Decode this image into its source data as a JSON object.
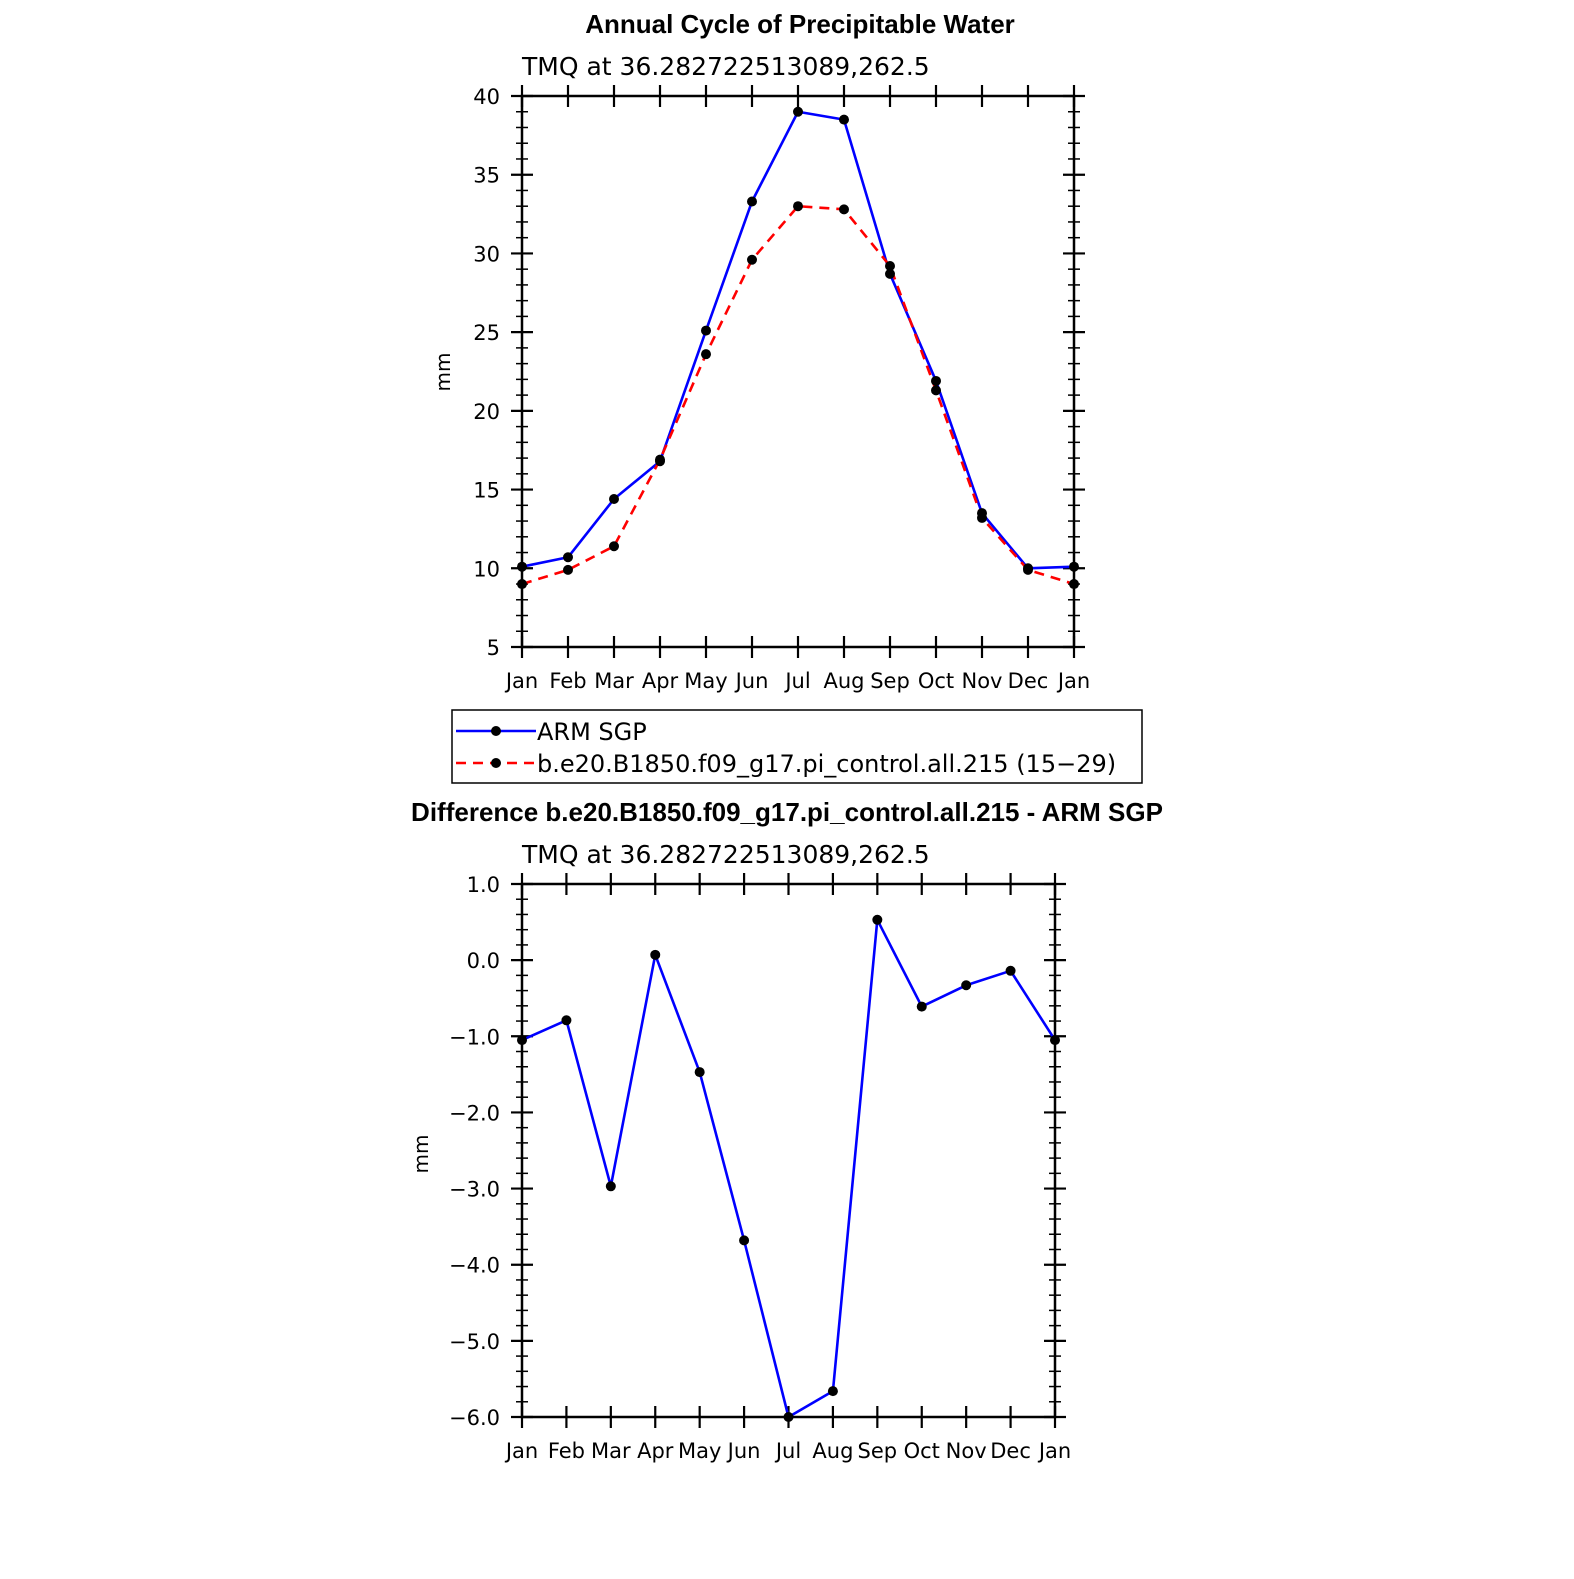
{
  "chart_data": [
    {
      "type": "line",
      "title": "Annual Cycle of Precipitable Water",
      "subtitle": "TMQ at 36.282722513089,262.5",
      "xlabel": "",
      "ylabel": "mm",
      "categories": [
        "Jan",
        "Feb",
        "Mar",
        "Apr",
        "May",
        "Jun",
        "Jul",
        "Aug",
        "Sep",
        "Oct",
        "Nov",
        "Dec",
        "Jan"
      ],
      "ylim": [
        5,
        40
      ],
      "yticks": [
        5,
        10,
        15,
        20,
        25,
        30,
        35,
        40
      ],
      "ytick_labels": [
        "5",
        "10",
        "15",
        "20",
        "25",
        "30",
        "35",
        "40"
      ],
      "series": [
        {
          "name": "ARM SGP",
          "color": "#0000ff",
          "dash": "solid",
          "values": [
            10.1,
            10.7,
            14.4,
            16.8,
            25.1,
            33.3,
            39.0,
            38.5,
            28.7,
            21.9,
            13.5,
            10.0,
            10.1
          ]
        },
        {
          "name": "b.e20.B1850.f09_g17.pi_control.all.215 (15−29)",
          "color": "#ff0000",
          "dash": "dashed",
          "values": [
            9.0,
            9.9,
            11.4,
            16.9,
            23.6,
            29.6,
            33.0,
            32.8,
            29.2,
            21.3,
            13.2,
            9.9,
            9.0
          ]
        }
      ],
      "legend": "below"
    },
    {
      "type": "line",
      "title": "Difference b.e20.B1850.f09_g17.pi_control.all.215 - ARM SGP",
      "subtitle": "TMQ at 36.282722513089,262.5",
      "xlabel": "",
      "ylabel": "mm",
      "categories": [
        "Jan",
        "Feb",
        "Mar",
        "Apr",
        "May",
        "Jun",
        "Jul",
        "Aug",
        "Sep",
        "Oct",
        "Nov",
        "Dec",
        "Jan"
      ],
      "ylim": [
        -6,
        1
      ],
      "yticks": [
        -6,
        -5,
        -4,
        -3,
        -2,
        -1,
        0,
        1
      ],
      "ytick_labels": [
        "−6.0",
        "−5.0",
        "−4.0",
        "−3.0",
        "−2.0",
        "−1.0",
        "0.0",
        "1.0"
      ],
      "series": [
        {
          "name": "Difference",
          "color": "#0000ff",
          "dash": "solid",
          "values": [
            -1.05,
            -0.79,
            -2.97,
            0.07,
            -1.47,
            -3.68,
            -6.0,
            -5.66,
            0.53,
            -0.61,
            -0.33,
            -0.14,
            -1.05
          ]
        }
      ]
    }
  ]
}
